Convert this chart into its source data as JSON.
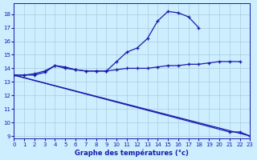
{
  "xlabel": "Graphe des températures (°c)",
  "xlim": [
    0,
    23
  ],
  "ylim": [
    9,
    18.5
  ],
  "yticks": [
    9,
    10,
    11,
    12,
    13,
    14,
    15,
    16,
    17,
    18
  ],
  "xticks": [
    0,
    1,
    2,
    3,
    4,
    5,
    6,
    7,
    8,
    9,
    10,
    11,
    12,
    13,
    14,
    15,
    16,
    17,
    18,
    19,
    20,
    21,
    22,
    23
  ],
  "background_color": "#cceeff",
  "grid_color": "#aaccdd",
  "line_color": "#1a1aaa",
  "line1_x": [
    0,
    1,
    2,
    3,
    4,
    5,
    6,
    7,
    8,
    9,
    10,
    11,
    12,
    13,
    14,
    15,
    16,
    17,
    18,
    19,
    20,
    21,
    22,
    23
  ],
  "line1_y": [
    13.5,
    13.5,
    13.6,
    13.8,
    14.2,
    14.1,
    13.9,
    13.8,
    13.8,
    13.8,
    14.5,
    15.2,
    15.5,
    16.2,
    17.5,
    18.2,
    18.1,
    17.8,
    17.0,
    null,
    null,
    null,
    null,
    null
  ],
  "line2_x": [
    0,
    1,
    2,
    3,
    4,
    5,
    6,
    7,
    8,
    9,
    10,
    11,
    12,
    13,
    14,
    15,
    16,
    17,
    18,
    19,
    20,
    21,
    22,
    23
  ],
  "line2_y": [
    13.5,
    13.5,
    13.5,
    13.7,
    14.2,
    14.0,
    13.9,
    13.8,
    13.8,
    13.8,
    13.9,
    14.0,
    14.0,
    14.0,
    14.1,
    14.2,
    14.2,
    14.3,
    14.3,
    14.4,
    14.5,
    14.5,
    14.5,
    null
  ],
  "line3_x": [
    0,
    1,
    2,
    3,
    4,
    5,
    6,
    7,
    8,
    9,
    10,
    11,
    12,
    13,
    14,
    15,
    16,
    17,
    18,
    19,
    20,
    21,
    22,
    23
  ],
  "line3_y": [
    13.5,
    null,
    null,
    null,
    null,
    null,
    null,
    null,
    null,
    null,
    null,
    null,
    null,
    null,
    null,
    null,
    null,
    null,
    null,
    null,
    null,
    9.3,
    9.3,
    9.0
  ]
}
